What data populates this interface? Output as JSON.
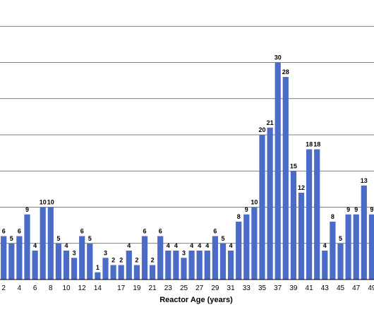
{
  "chart_data": {
    "type": "bar",
    "xlabel": "Reactor Age (years)",
    "ylabel": "",
    "title": "",
    "grid": true,
    "ylim": [
      0,
      35
    ],
    "gridlines": [
      5,
      10,
      15,
      20,
      25,
      30,
      35
    ],
    "bar_color": "#4a6cc6",
    "tick_labels": [
      "2",
      "4",
      "6",
      "8",
      "10",
      "12",
      "14",
      "17",
      "19",
      "21",
      "23",
      "25",
      "27",
      "29",
      "31",
      "33",
      "35",
      "37",
      "39",
      "41",
      "43",
      "45",
      "47",
      "49"
    ],
    "categories": [
      "1",
      "2",
      "3",
      "4",
      "5",
      "6",
      "7",
      "8",
      "9",
      "10",
      "11",
      "12",
      "13",
      "14",
      "15",
      "16",
      "17",
      "18",
      "19",
      "20",
      "21",
      "22",
      "23",
      "24",
      "25",
      "26",
      "27",
      "28",
      "29",
      "30",
      "31",
      "32",
      "33",
      "34",
      "35",
      "36",
      "37",
      "38",
      "39",
      "40",
      "41",
      "42",
      "43",
      "44",
      "45",
      "46",
      "47",
      "48",
      "49",
      "50"
    ],
    "values": [
      6,
      6,
      5,
      6,
      9,
      4,
      10,
      10,
      5,
      4,
      3,
      6,
      5,
      1,
      3,
      2,
      2,
      4,
      2,
      6,
      2,
      6,
      4,
      4,
      3,
      4,
      4,
      4,
      6,
      5,
      4,
      8,
      9,
      10,
      20,
      21,
      30,
      28,
      15,
      12,
      18,
      18,
      4,
      8,
      5,
      9,
      9,
      13,
      9,
      9
    ],
    "visible_data_labels": [
      "6",
      "6",
      "5",
      "6",
      "9",
      "4",
      "10",
      "10",
      "5",
      "4",
      "3",
      "6",
      "5",
      "1",
      "3",
      "2",
      "2",
      "4",
      "2",
      "6",
      "2",
      "6",
      "4",
      "4",
      "3",
      "4",
      "4",
      "4",
      "6",
      "5",
      "4",
      "8",
      "9",
      "10",
      "20",
      "21",
      "30",
      "28",
      "15",
      "12",
      "18",
      "18",
      "4",
      "8",
      "5",
      "9",
      "9",
      "13",
      "9"
    ]
  }
}
